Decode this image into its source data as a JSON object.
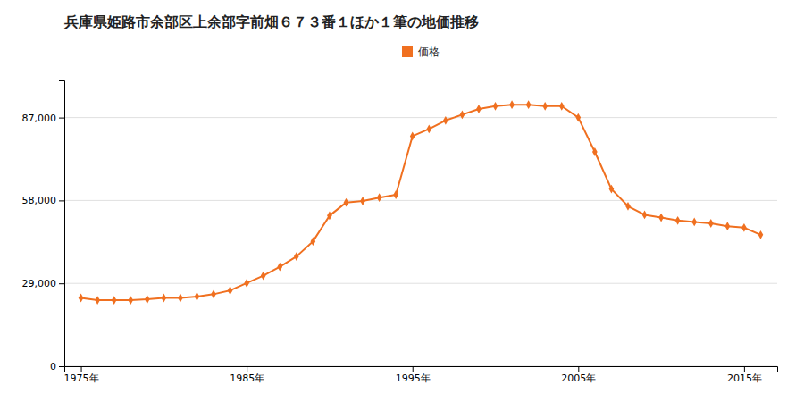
{
  "chart_data": {
    "type": "line",
    "title": "兵庫県姫路市余部区上余部字前畑６７３番１ほか１筆の地価推移",
    "x": [
      1975,
      1976,
      1977,
      1978,
      1979,
      1980,
      1981,
      1982,
      1983,
      1984,
      1985,
      1986,
      1987,
      1988,
      1989,
      1990,
      1991,
      1992,
      1993,
      1994,
      1995,
      1996,
      1997,
      1998,
      1999,
      2000,
      2001,
      2002,
      2003,
      2004,
      2005,
      2006,
      2007,
      2008,
      2009,
      2010,
      2011,
      2012,
      2013,
      2014,
      2015,
      2016
    ],
    "series": [
      {
        "name": "価格",
        "color": "#f07020",
        "marker": "diamond",
        "values": [
          23900,
          23100,
          23100,
          23100,
          23400,
          23900,
          23900,
          24400,
          25200,
          26500,
          29100,
          31700,
          34800,
          38400,
          43700,
          52700,
          57300,
          57800,
          59000,
          60000,
          80500,
          83000,
          86000,
          88000,
          90000,
          91000,
          91500,
          91500,
          91000,
          91000,
          87000,
          75000,
          62000,
          56000,
          53000,
          52000,
          51000,
          50500,
          50000,
          49000,
          48500,
          46000
        ]
      }
    ],
    "xlim": [
      1974,
      2017
    ],
    "xticks": [
      {
        "value": 1975,
        "label": "1975年"
      },
      {
        "value": 1985,
        "label": "1985年"
      },
      {
        "value": 1995,
        "label": "1995年"
      },
      {
        "value": 2005,
        "label": "2005年"
      },
      {
        "value": 2015,
        "label": "2015年"
      }
    ],
    "ylim": [
      0,
      100000
    ],
    "yticks": [
      0,
      {
        "value": 29000,
        "label": "29,000"
      },
      {
        "value": 58000,
        "label": "58,000"
      },
      {
        "value": 87000,
        "label": "87,000"
      }
    ],
    "grid": true,
    "legend": "top"
  }
}
